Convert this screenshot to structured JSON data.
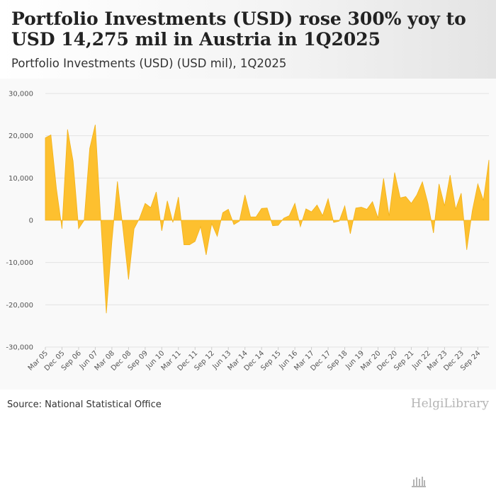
{
  "header": {
    "title": "Portfolio Investments (USD) rose 300% yoy to USD 14,275 mil in Austria in 1Q2025",
    "subtitle": "Portfolio Investments (USD) (USD mil), 1Q2025"
  },
  "footer": {
    "source": "Source: National Statistical Office",
    "brand": "HelgiLibrary"
  },
  "colors": {
    "fill": "#fdc02f",
    "stroke": "#f2b21a"
  },
  "chart_data": {
    "type": "area",
    "title": "Portfolio Investments (USD) (USD mil), 1Q2025",
    "xlabel": "",
    "ylabel": "",
    "ylim": [
      -30000,
      30000
    ],
    "y_ticks": [
      30000,
      20000,
      10000,
      0,
      -10000,
      -20000,
      -30000
    ],
    "y_tick_labels": [
      "30,000",
      "20,000",
      "10,000",
      "0",
      "-10,000",
      "-20,000",
      "-30,000"
    ],
    "x_tick_labels": [
      "Mar 05",
      "Dec 05",
      "Sep 06",
      "Jun 07",
      "Mar 08",
      "Dec 08",
      "Sep 09",
      "Jun 10",
      "Mar 11",
      "Dec 11",
      "Sep 12",
      "Jun 13",
      "Mar 14",
      "Dec 14",
      "Sep 15",
      "Jun 16",
      "Mar 17",
      "Dec 17",
      "Sep 18",
      "Jun 19",
      "Mar 20",
      "Dec 20",
      "Sep 21",
      "Jun 22",
      "Mar 23",
      "Dec 23",
      "Sep 24"
    ],
    "grid": true,
    "series": [
      {
        "name": "Portfolio Investments (USD)",
        "start": "1Q2005",
        "end": "1Q2025",
        "values": [
          19500,
          20200,
          7500,
          -2000,
          21500,
          14000,
          -2000,
          0,
          17000,
          22600,
          0,
          -22000,
          -5000,
          9200,
          -2000,
          -14000,
          -2000,
          500,
          4000,
          3000,
          6700,
          -2500,
          4600,
          -500,
          5500,
          -5800,
          -5800,
          -5000,
          -1500,
          -8200,
          -800,
          -3800,
          1800,
          2600,
          -1000,
          -200,
          6000,
          800,
          800,
          2800,
          2900,
          -1300,
          -1200,
          500,
          1100,
          4000,
          -1500,
          2700,
          2000,
          3600,
          1100,
          5100,
          -500,
          -200,
          3400,
          -3200,
          2900,
          3100,
          2600,
          4400,
          500,
          9900,
          1000,
          11300,
          5300,
          5600,
          4000,
          6000,
          9100,
          4000,
          -3000,
          8600,
          3400,
          10700,
          2600,
          6400,
          -7000,
          2200,
          8600,
          4700,
          14275
        ]
      }
    ]
  }
}
